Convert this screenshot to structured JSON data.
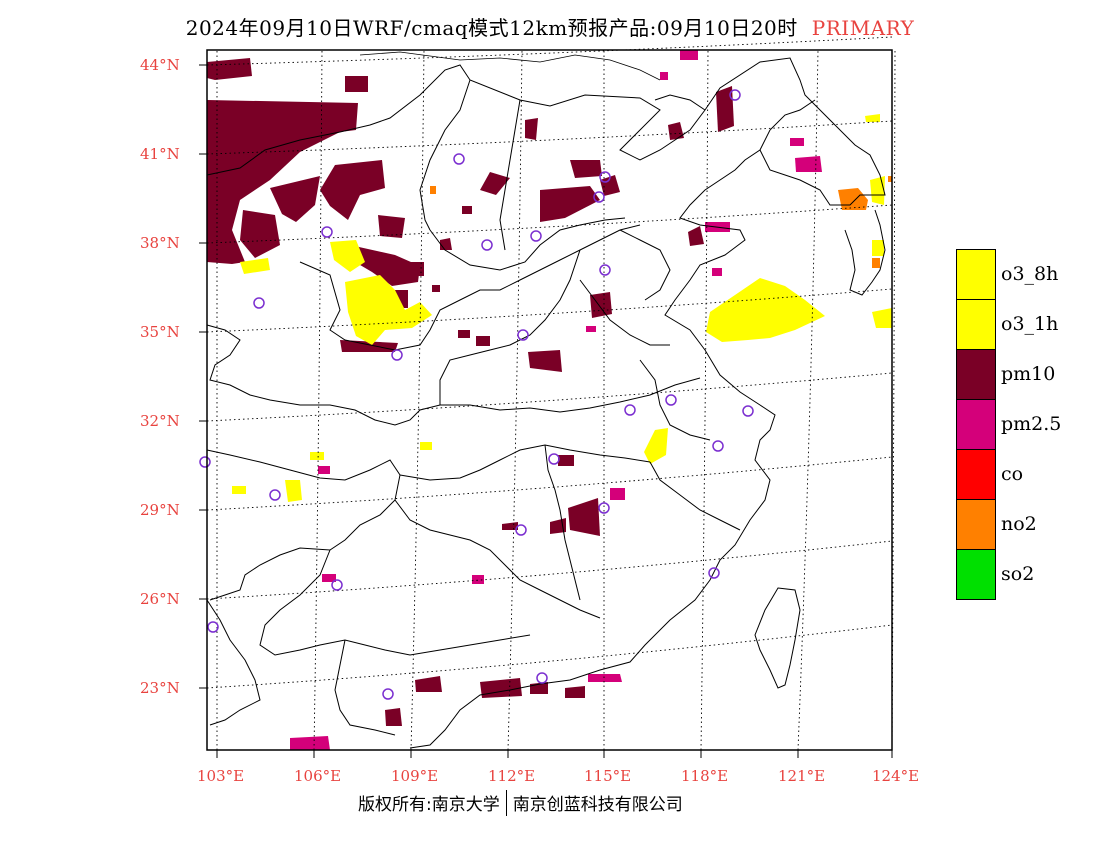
{
  "title": {
    "main": "2024年09月10日WRF/cmaq模式12km预报产品:09月10日20时",
    "tag": "PRIMARY"
  },
  "footer": {
    "left": "版权所有:南京大学",
    "right": "南京创蓝科技有限公司"
  },
  "axes": {
    "lat_labels": [
      "44°N",
      "41°N",
      "38°N",
      "35°N",
      "32°N",
      "29°N",
      "26°N",
      "23°N"
    ],
    "lon_labels": [
      "103°E",
      "106°E",
      "109°E",
      "112°E",
      "115°E",
      "118°E",
      "121°E",
      "124°E"
    ]
  },
  "legend": [
    {
      "label": "o3_8h",
      "color": "#ffff00"
    },
    {
      "label": "o3_1h",
      "color": "#ffff00"
    },
    {
      "label": "pm10",
      "color": "#7a0026"
    },
    {
      "label": "pm2.5",
      "color": "#d4007a"
    },
    {
      "label": "co",
      "color": "#ff0000"
    },
    {
      "label": "no2",
      "color": "#ff8000"
    },
    {
      "label": "so2",
      "color": "#00e000"
    }
  ],
  "colors": {
    "axis_text": "#e8433f",
    "pm10": "#7a0026",
    "pm25": "#d4007a",
    "o3": "#ffff00",
    "no2": "#ff8000",
    "station": "#7b2fd0"
  }
}
